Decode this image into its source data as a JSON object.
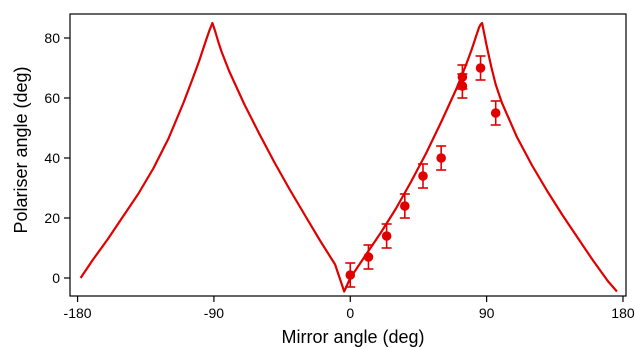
{
  "chart_data": {
    "type": "scatter",
    "title": "",
    "xlabel": "Mirror angle (deg)",
    "ylabel": "Polariser angle (deg)",
    "xlim": [
      -185,
      182
    ],
    "ylim": [
      -6,
      88
    ],
    "x_ticks": [
      -180,
      -90,
      0,
      90,
      180
    ],
    "x_tick_labels": [
      "-180",
      "-90",
      "0",
      "90",
      "180"
    ],
    "y_ticks": [
      0,
      20,
      40,
      60,
      80
    ],
    "y_tick_labels": [
      "0",
      "20",
      "40",
      "60",
      "80"
    ],
    "grid": false,
    "colors": {
      "series": "#e00000",
      "axis": "#000000"
    },
    "series": [
      {
        "kind": "line",
        "x": [
          -178,
          -170,
          -160,
          -150,
          -140,
          -130,
          -120,
          -110,
          -104,
          -100,
          -97,
          -95,
          -93,
          -91,
          -89,
          -87,
          -85,
          -80,
          -70,
          -60,
          -50,
          -40,
          -30,
          -20,
          -10,
          -4,
          0,
          10,
          20,
          30,
          40,
          50,
          60,
          70,
          76,
          80,
          83,
          85,
          86,
          87,
          88,
          90,
          93,
          96,
          100,
          110,
          120,
          130,
          140,
          150,
          160,
          170,
          176
        ],
        "y": [
          0,
          6,
          13,
          20.5,
          28,
          36.5,
          46.5,
          58.5,
          66.5,
          72,
          76.5,
          79.5,
          82.5,
          85,
          82,
          78.5,
          75.5,
          69,
          58,
          48,
          38.5,
          29.5,
          21,
          12.5,
          4.5,
          -4.5,
          0,
          7.5,
          15,
          23,
          32,
          41.5,
          52,
          63,
          70.5,
          76,
          80.5,
          83.5,
          84.5,
          85,
          82.5,
          77.5,
          70.5,
          64.5,
          58.5,
          47,
          37.5,
          29,
          21,
          13.5,
          6,
          -1,
          -4.5
        ]
      },
      {
        "kind": "points_with_error",
        "x": [
          0,
          12,
          24,
          36,
          48,
          60,
          74,
          74,
          86,
          96
        ],
        "y": [
          1,
          7,
          14,
          24,
          34,
          40,
          64,
          67,
          70,
          55
        ],
        "err": [
          4,
          4,
          4,
          4,
          4,
          4,
          4,
          4,
          4,
          4
        ]
      }
    ]
  }
}
